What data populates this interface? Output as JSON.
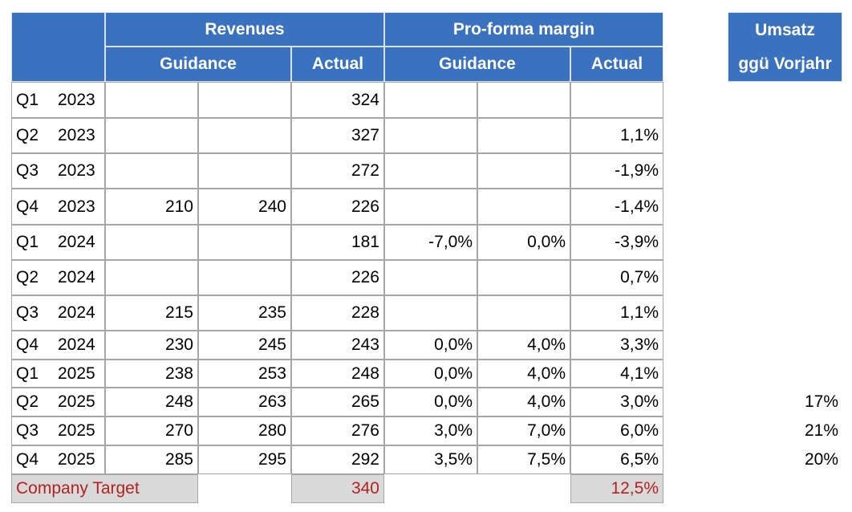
{
  "header": {
    "revenues": "Revenues",
    "margin": "Pro-forma margin",
    "revenues_guidance": "Guidance",
    "revenues_actual": "Actual",
    "margin_guidance": "Guidance",
    "margin_actual": "Actual",
    "growth": [
      "Umsatz",
      "ggü Vorjahr"
    ]
  },
  "table": {
    "rows": [
      [
        "Q1",
        2023,
        null,
        null,
        324,
        null,
        null,
        null,
        null
      ],
      [
        "Q2",
        2023,
        null,
        null,
        327,
        null,
        null,
        "1,1%",
        null
      ],
      [
        "Q3",
        2023,
        null,
        null,
        272,
        null,
        null,
        "-1,9%",
        null
      ],
      [
        "Q4",
        2023,
        210,
        240,
        226,
        null,
        null,
        "-1,4%",
        null
      ],
      [
        "Q1",
        2024,
        null,
        null,
        181,
        "-7,0%",
        "0,0%",
        "-3,9%",
        null
      ],
      [
        "Q2",
        2024,
        null,
        null,
        226,
        null,
        null,
        "0,7%",
        null
      ],
      [
        "Q3",
        2024,
        215,
        235,
        228,
        null,
        null,
        "1,1%",
        null
      ],
      [
        "Q4",
        2024,
        230,
        245,
        243,
        "0,0%",
        "4,0%",
        "3,3%",
        null
      ],
      [
        "Q1",
        2025,
        238,
        253,
        248,
        "0,0%",
        "4,0%",
        "4,1%",
        null
      ],
      [
        "Q2",
        2025,
        248,
        263,
        265,
        "0,0%",
        "4,0%",
        "3,0%",
        "17%"
      ],
      [
        "Q3",
        2025,
        270,
        280,
        276,
        "3,0%",
        "7,0%",
        "6,0%",
        "21%"
      ],
      [
        "Q4",
        2025,
        285,
        295,
        292,
        "3,5%",
        "7,5%",
        "6,5%",
        "20%"
      ]
    ]
  },
  "target": {
    "label": "Company Target",
    "revenues": 340,
    "margin": "12,5%"
  }
}
